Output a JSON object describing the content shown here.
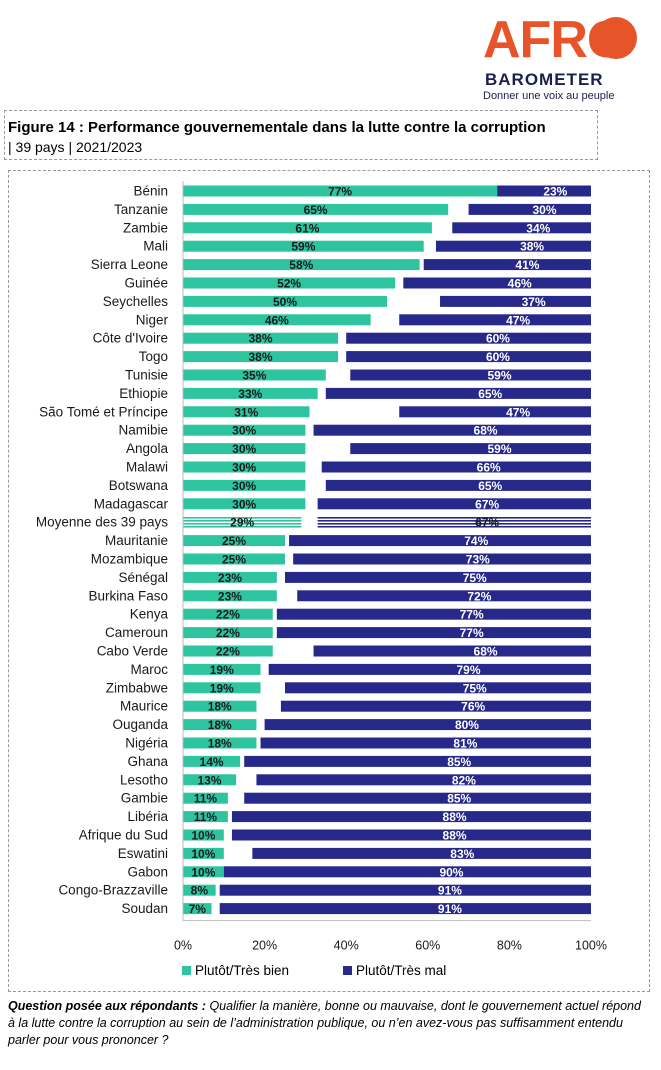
{
  "logo": {
    "main": "AFRO",
    "sub": "BAROMETER",
    "tagline": "Donner une voix au peuple"
  },
  "header": {
    "title": "Figure 14 : Performance gouvernementale dans la lutte contre la corruption",
    "subtitle": "| 39 pays | 2021/2023"
  },
  "question": {
    "label": "Question posée aux répondants :",
    "text": "Qualifier la manière, bonne ou mauvaise, dont le gouvernement actuel répond à la lutte contre la corruption au sein de l’administration publique, ou n’en avez-vous pas suffisamment entendu parler pour vous prononcer ?"
  },
  "colors": {
    "bien": "#2ec4a0",
    "mal": "#26288a"
  },
  "chart_data": {
    "type": "bar",
    "orientation": "horizontal",
    "stacked_diverging": true,
    "xlim": [
      0,
      100
    ],
    "xticks": [
      "0%",
      "20%",
      "40%",
      "60%",
      "80%",
      "100%"
    ],
    "legend_position": "bottom",
    "categories": [
      "Bénin",
      "Tanzanie",
      "Zambie",
      "Mali",
      "Sierra Leone",
      "Guinée",
      "Seychelles",
      "Niger",
      "Côte d'Ivoire",
      "Togo",
      "Tunisie",
      "Ethiopie",
      "São Tomé et Príncipe",
      "Namibie",
      "Angola",
      "Malawi",
      "Botswana",
      "Madagascar",
      "Moyenne des 39 pays",
      "Mauritanie",
      "Mozambique",
      "Sénégal",
      "Burkina Faso",
      "Kenya",
      "Cameroun",
      "Cabo Verde",
      "Maroc",
      "Zimbabwe",
      "Maurice",
      "Ouganda",
      "Nigéria",
      "Ghana",
      "Lesotho",
      "Gambie",
      "Libéria",
      "Afrique du Sud",
      "Eswatini",
      "Gabon",
      "Congo-Brazzaville",
      "Soudan"
    ],
    "highlight_category": "Moyenne des 39 pays",
    "series": [
      {
        "name": "Plutôt/Très bien",
        "values": [
          77,
          65,
          61,
          59,
          58,
          52,
          50,
          46,
          38,
          38,
          35,
          33,
          31,
          30,
          30,
          30,
          30,
          30,
          29,
          25,
          25,
          23,
          23,
          22,
          22,
          22,
          19,
          19,
          18,
          18,
          18,
          14,
          13,
          11,
          11,
          10,
          10,
          10,
          8,
          7
        ]
      },
      {
        "name": "Plutôt/Très mal",
        "values": [
          23,
          30,
          34,
          38,
          41,
          46,
          37,
          47,
          60,
          60,
          59,
          65,
          47,
          68,
          59,
          66,
          65,
          67,
          67,
          74,
          73,
          75,
          72,
          77,
          77,
          68,
          79,
          75,
          76,
          80,
          81,
          85,
          82,
          85,
          88,
          88,
          83,
          90,
          91,
          91
        ]
      }
    ]
  }
}
